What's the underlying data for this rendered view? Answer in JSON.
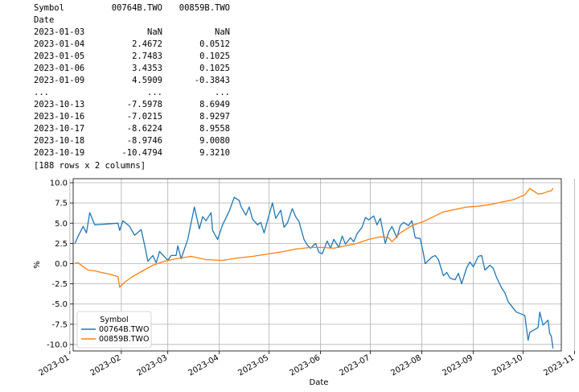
{
  "output": {
    "header": [
      "Symbol",
      "00764B.TWO",
      "00859B.TWO"
    ],
    "index_label": "Date",
    "rows": [
      [
        "2023-01-03",
        "NaN",
        "NaN"
      ],
      [
        "2023-01-04",
        "2.4672",
        "0.0512"
      ],
      [
        "2023-01-05",
        "2.7483",
        "0.1025"
      ],
      [
        "2023-01-06",
        "3.4353",
        "0.1025"
      ],
      [
        "2023-01-09",
        "4.5909",
        "-0.3843"
      ],
      [
        "...",
        "...",
        "..."
      ],
      [
        "2023-10-13",
        "-7.5978",
        "8.6949"
      ],
      [
        "2023-10-16",
        "-7.0215",
        "8.9297"
      ],
      [
        "2023-10-17",
        "-8.6224",
        "8.9558"
      ],
      [
        "2023-10-18",
        "-8.9746",
        "9.0080"
      ],
      [
        "2023-10-19",
        "-10.4794",
        "9.3210"
      ]
    ],
    "summary": "[188 rows x 2 columns]"
  },
  "chart_data": {
    "type": "line",
    "xlabel": "Date",
    "ylabel": "%",
    "ylim": [
      -10.8,
      10.5
    ],
    "xlim": [
      "2023-01-03",
      "2023-10-24"
    ],
    "yticks": [
      10.0,
      7.5,
      5.0,
      2.5,
      0.0,
      -2.5,
      -5.0,
      -7.5,
      -10.0
    ],
    "xticks": [
      {
        "date": "2023-01-01",
        "label": "2023-01"
      },
      {
        "date": "2023-02-01",
        "label": "2023-02"
      },
      {
        "date": "2023-03-01",
        "label": "2023-03"
      },
      {
        "date": "2023-04-01",
        "label": "2023-04"
      },
      {
        "date": "2023-05-01",
        "label": "2023-05"
      },
      {
        "date": "2023-06-01",
        "label": "2023-06"
      },
      {
        "date": "2023-07-01",
        "label": "2023-07"
      },
      {
        "date": "2023-08-01",
        "label": "2023-08"
      },
      {
        "date": "2023-09-01",
        "label": "2023-09"
      },
      {
        "date": "2023-10-01",
        "label": "2023-10"
      },
      {
        "date": "2023-11-01",
        "label": "2023-11"
      }
    ],
    "grid": true,
    "legend": {
      "title": "Symbol",
      "placement": "lower-left"
    },
    "series": [
      {
        "name": "00764B.TWO",
        "color": "#1f77b4",
        "points": [
          [
            "2023-01-04",
            2.47
          ],
          [
            "2023-01-06",
            3.4
          ],
          [
            "2023-01-09",
            4.6
          ],
          [
            "2023-01-11",
            3.8
          ],
          [
            "2023-01-13",
            6.3
          ],
          [
            "2023-01-16",
            4.8
          ],
          [
            "2023-01-30",
            5.0
          ],
          [
            "2023-01-31",
            4.1
          ],
          [
            "2023-02-02",
            5.3
          ],
          [
            "2023-02-06",
            4.6
          ],
          [
            "2023-02-09",
            3.5
          ],
          [
            "2023-02-13",
            4.2
          ],
          [
            "2023-02-15",
            2.3
          ],
          [
            "2023-02-17",
            0.3
          ],
          [
            "2023-02-20",
            1.0
          ],
          [
            "2023-02-22",
            0.1
          ],
          [
            "2023-02-24",
            1.5
          ],
          [
            "2023-03-01",
            0.4
          ],
          [
            "2023-03-03",
            1.0
          ],
          [
            "2023-03-06",
            1.0
          ],
          [
            "2023-03-07",
            2.2
          ],
          [
            "2023-03-09",
            0.6
          ],
          [
            "2023-03-13",
            3.0
          ],
          [
            "2023-03-15",
            5.0
          ],
          [
            "2023-03-17",
            7.0
          ],
          [
            "2023-03-20",
            4.3
          ],
          [
            "2023-03-22",
            5.8
          ],
          [
            "2023-03-24",
            5.3
          ],
          [
            "2023-03-27",
            6.3
          ],
          [
            "2023-03-28",
            4.1
          ],
          [
            "2023-03-31",
            3.0
          ],
          [
            "2023-04-03",
            4.8
          ],
          [
            "2023-04-07",
            6.5
          ],
          [
            "2023-04-10",
            8.2
          ],
          [
            "2023-04-13",
            7.8
          ],
          [
            "2023-04-14",
            7.1
          ],
          [
            "2023-04-17",
            6.0
          ],
          [
            "2023-04-19",
            7.0
          ],
          [
            "2023-04-21",
            5.5
          ],
          [
            "2023-04-24",
            4.8
          ],
          [
            "2023-04-26",
            5.1
          ],
          [
            "2023-04-28",
            3.8
          ],
          [
            "2023-05-03",
            7.5
          ],
          [
            "2023-05-05",
            5.6
          ],
          [
            "2023-05-08",
            6.6
          ],
          [
            "2023-05-10",
            4.5
          ],
          [
            "2023-05-12",
            5.0
          ],
          [
            "2023-05-15",
            6.8
          ],
          [
            "2023-05-17",
            5.8
          ],
          [
            "2023-05-19",
            5.2
          ],
          [
            "2023-05-22",
            3.0
          ],
          [
            "2023-05-24",
            2.3
          ],
          [
            "2023-05-26",
            1.9
          ],
          [
            "2023-05-29",
            2.5
          ],
          [
            "2023-05-31",
            1.4
          ],
          [
            "2023-06-02",
            1.2
          ],
          [
            "2023-06-05",
            2.8
          ],
          [
            "2023-06-07",
            1.9
          ],
          [
            "2023-06-09",
            3.0
          ],
          [
            "2023-06-12",
            2.0
          ],
          [
            "2023-06-14",
            3.4
          ],
          [
            "2023-06-16",
            2.4
          ],
          [
            "2023-06-19",
            3.2
          ],
          [
            "2023-06-21",
            2.7
          ],
          [
            "2023-06-23",
            3.7
          ],
          [
            "2023-06-26",
            4.5
          ],
          [
            "2023-06-28",
            5.7
          ],
          [
            "2023-06-30",
            5.4
          ],
          [
            "2023-07-03",
            5.9
          ],
          [
            "2023-07-05",
            4.8
          ],
          [
            "2023-07-07",
            5.6
          ],
          [
            "2023-07-10",
            2.5
          ],
          [
            "2023-07-12",
            3.9
          ],
          [
            "2023-07-14",
            4.6
          ],
          [
            "2023-07-17",
            3.2
          ],
          [
            "2023-07-19",
            4.7
          ],
          [
            "2023-07-21",
            5.1
          ],
          [
            "2023-07-24",
            4.7
          ],
          [
            "2023-07-26",
            5.3
          ],
          [
            "2023-07-28",
            3.2
          ],
          [
            "2023-07-31",
            3.1
          ],
          [
            "2023-08-02",
            1.2
          ],
          [
            "2023-08-03",
            0.0
          ],
          [
            "2023-08-07",
            0.8
          ],
          [
            "2023-08-09",
            1.0
          ],
          [
            "2023-08-11",
            0.5
          ],
          [
            "2023-08-14",
            -1.5
          ],
          [
            "2023-08-16",
            -1.1
          ],
          [
            "2023-08-18",
            -1.8
          ],
          [
            "2023-08-21",
            -2.0
          ],
          [
            "2023-08-23",
            -1.2
          ],
          [
            "2023-08-25",
            -2.5
          ],
          [
            "2023-08-28",
            -0.5
          ],
          [
            "2023-08-30",
            0.2
          ],
          [
            "2023-09-01",
            -0.4
          ],
          [
            "2023-09-04",
            0.9
          ],
          [
            "2023-09-06",
            1.0
          ],
          [
            "2023-09-08",
            -0.8
          ],
          [
            "2023-09-11",
            -0.2
          ],
          [
            "2023-09-13",
            -0.6
          ],
          [
            "2023-09-15",
            -1.7
          ],
          [
            "2023-09-18",
            -3.0
          ],
          [
            "2023-09-20",
            -3.6
          ],
          [
            "2023-09-22",
            -4.7
          ],
          [
            "2023-09-25",
            -5.5
          ],
          [
            "2023-09-27",
            -6.0
          ],
          [
            "2023-10-02",
            -6.4
          ],
          [
            "2023-10-04",
            -9.5
          ],
          [
            "2023-10-05",
            -8.5
          ],
          [
            "2023-10-10",
            -7.9
          ],
          [
            "2023-10-11",
            -6.0
          ],
          [
            "2023-10-13",
            -7.6
          ],
          [
            "2023-10-16",
            -7.0
          ],
          [
            "2023-10-17",
            -8.6
          ],
          [
            "2023-10-18",
            -9.0
          ],
          [
            "2023-10-19",
            -10.48
          ]
        ]
      },
      {
        "name": "00859B.TWO",
        "color": "#ff7f0e",
        "points": [
          [
            "2023-01-04",
            0.05
          ],
          [
            "2023-01-06",
            0.1
          ],
          [
            "2023-01-09",
            -0.38
          ],
          [
            "2023-01-12",
            -0.8
          ],
          [
            "2023-01-16",
            -0.9
          ],
          [
            "2023-01-20",
            -1.1
          ],
          [
            "2023-01-25",
            -1.3
          ],
          [
            "2023-01-30",
            -1.6
          ],
          [
            "2023-01-31",
            -2.9
          ],
          [
            "2023-02-03",
            -2.3
          ],
          [
            "2023-02-07",
            -1.7
          ],
          [
            "2023-02-13",
            -1.0
          ],
          [
            "2023-02-20",
            -0.2
          ],
          [
            "2023-02-27",
            0.3
          ],
          [
            "2023-03-06",
            0.6
          ],
          [
            "2023-03-15",
            0.9
          ],
          [
            "2023-03-24",
            0.5
          ],
          [
            "2023-04-03",
            0.4
          ],
          [
            "2023-04-12",
            0.7
          ],
          [
            "2023-04-21",
            0.9
          ],
          [
            "2023-05-01",
            1.2
          ],
          [
            "2023-05-10",
            1.5
          ],
          [
            "2023-05-17",
            1.8
          ],
          [
            "2023-05-26",
            2.0
          ],
          [
            "2023-06-02",
            2.0
          ],
          [
            "2023-06-09",
            1.9
          ],
          [
            "2023-06-16",
            2.2
          ],
          [
            "2023-06-23",
            2.5
          ],
          [
            "2023-06-30",
            3.0
          ],
          [
            "2023-07-07",
            3.3
          ],
          [
            "2023-07-12",
            3.2
          ],
          [
            "2023-07-14",
            2.7
          ],
          [
            "2023-07-19",
            3.8
          ],
          [
            "2023-07-26",
            4.7
          ],
          [
            "2023-08-02",
            5.2
          ],
          [
            "2023-08-09",
            5.9
          ],
          [
            "2023-08-14",
            6.4
          ],
          [
            "2023-08-21",
            6.7
          ],
          [
            "2023-08-28",
            7.0
          ],
          [
            "2023-09-04",
            7.1
          ],
          [
            "2023-09-11",
            7.3
          ],
          [
            "2023-09-18",
            7.6
          ],
          [
            "2023-09-25",
            7.9
          ],
          [
            "2023-10-02",
            8.5
          ],
          [
            "2023-10-05",
            9.3
          ],
          [
            "2023-10-10",
            8.6
          ],
          [
            "2023-10-13",
            8.69
          ],
          [
            "2023-10-16",
            8.93
          ],
          [
            "2023-10-17",
            8.96
          ],
          [
            "2023-10-18",
            9.01
          ],
          [
            "2023-10-19",
            9.32
          ]
        ]
      }
    ]
  }
}
